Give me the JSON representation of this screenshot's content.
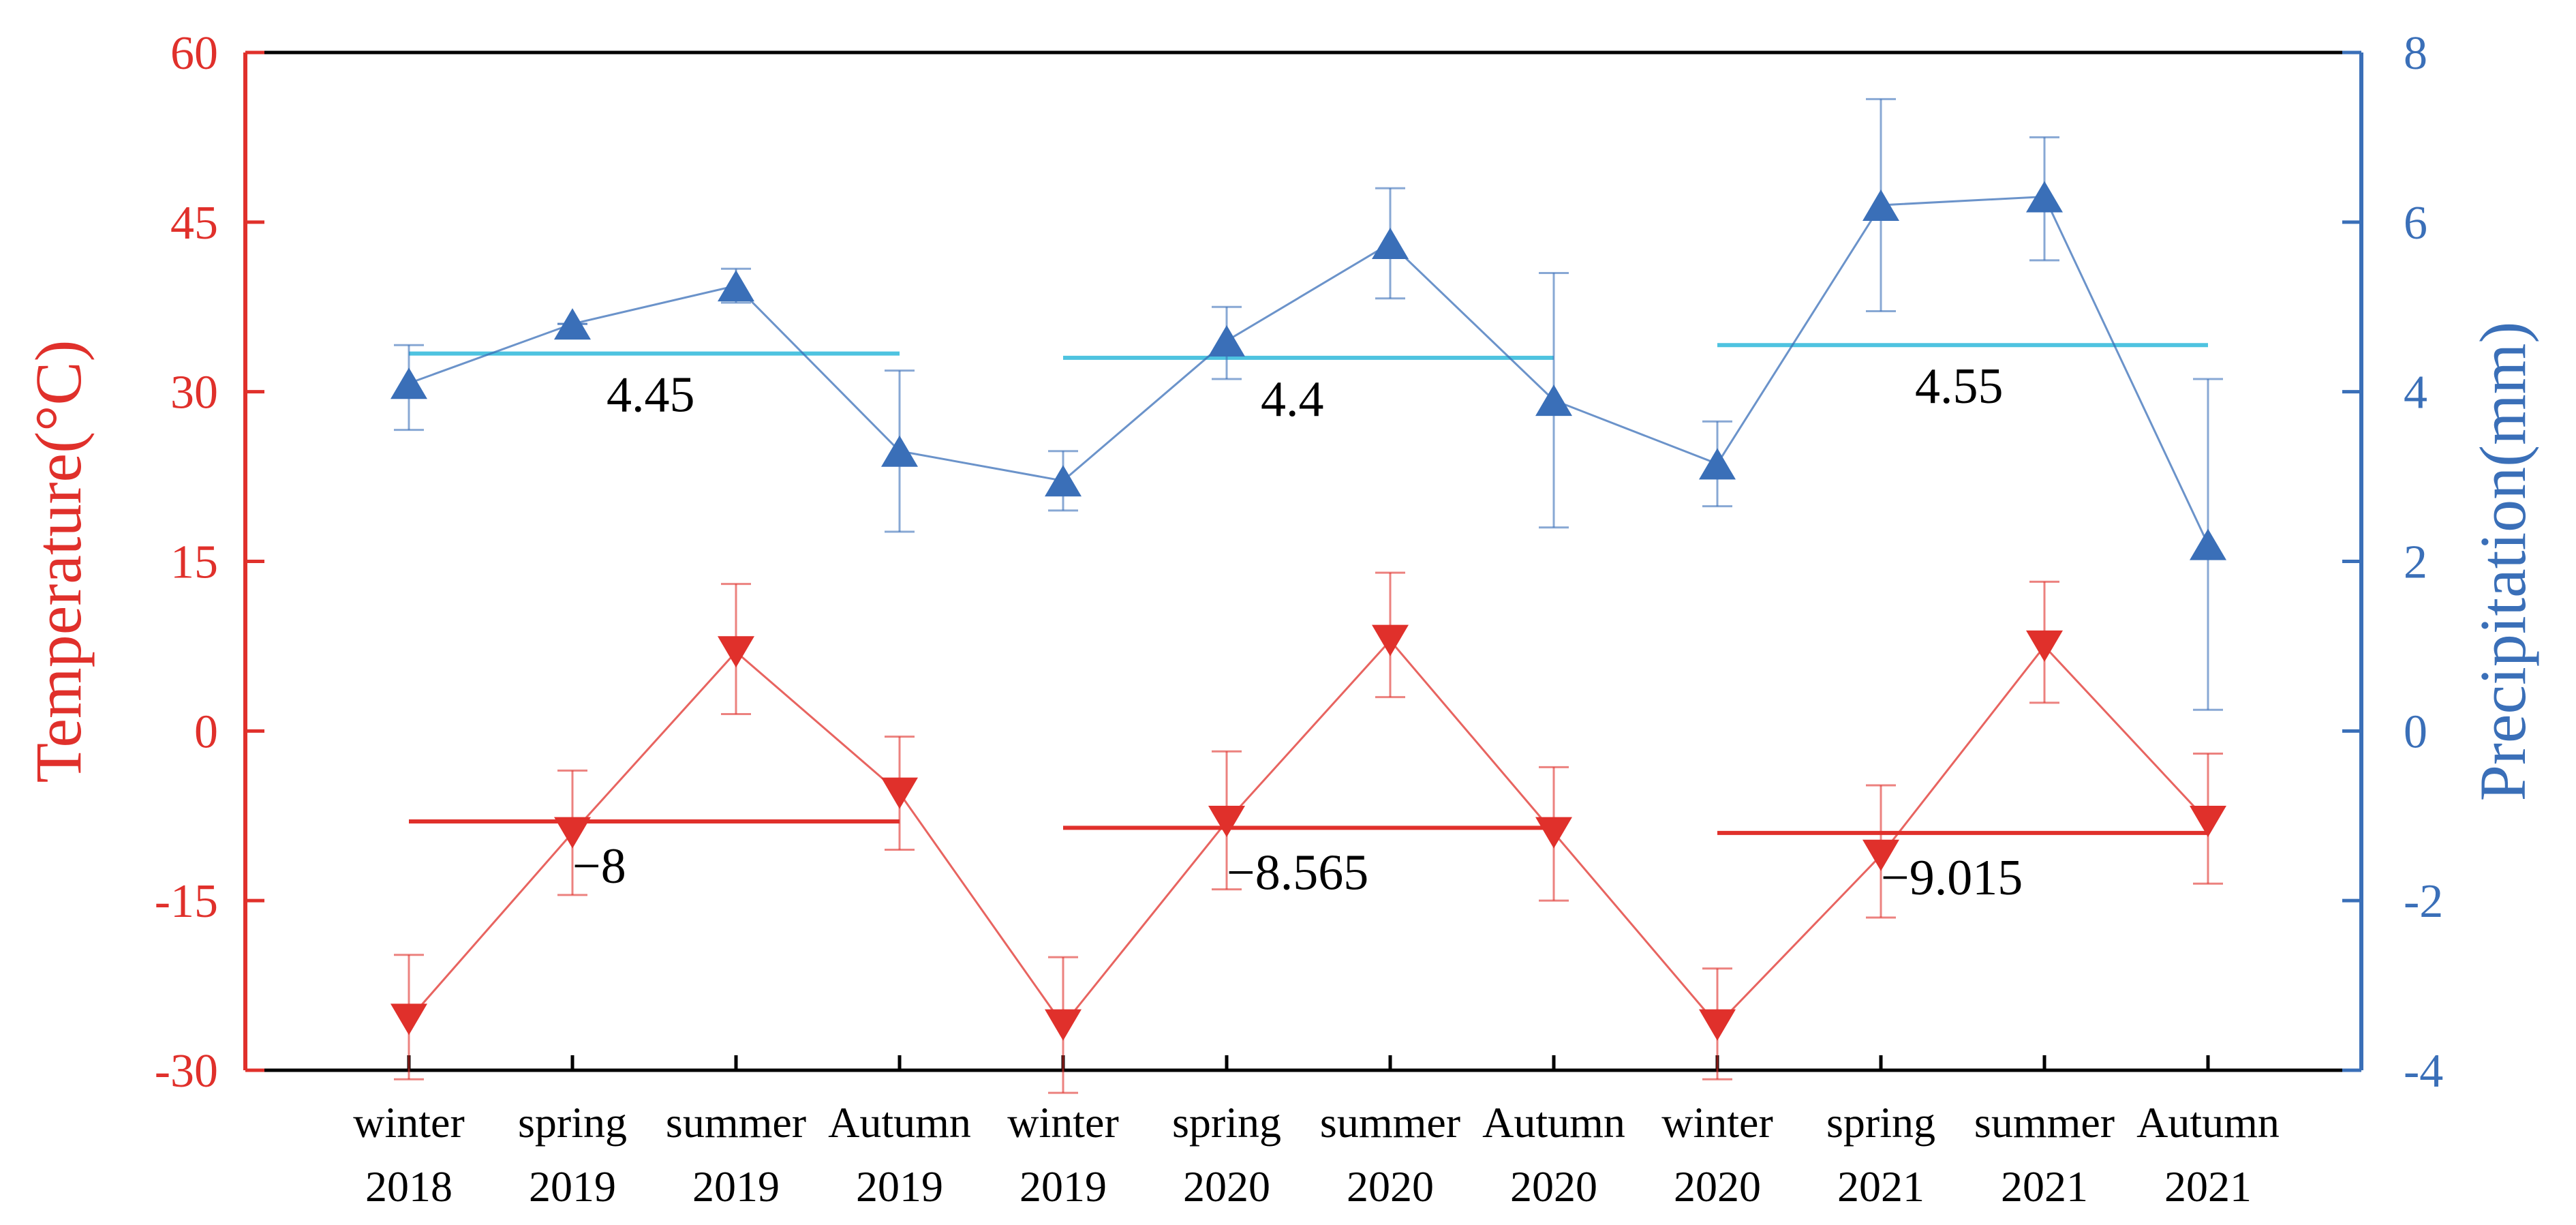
{
  "chart_data": {
    "type": "line",
    "categories": [
      [
        "winter",
        "2018"
      ],
      [
        "spring",
        "2019"
      ],
      [
        "summer",
        "2019"
      ],
      [
        "Autumn",
        "2019"
      ],
      [
        "winter",
        "2019"
      ],
      [
        "spring",
        "2020"
      ],
      [
        "summer",
        "2020"
      ],
      [
        "Autumn",
        "2020"
      ],
      [
        "winter",
        "2020"
      ],
      [
        "spring",
        "2021"
      ],
      [
        "summer",
        "2021"
      ],
      [
        "Autumn",
        "2021"
      ]
    ],
    "left_axis": {
      "label": "Temperature(°C)",
      "range": [
        -30,
        60
      ],
      "ticks": [
        "60",
        "45",
        "30",
        "15",
        "0",
        "-15",
        "-30"
      ],
      "tick_values": [
        60,
        45,
        30,
        15,
        0,
        -15,
        -30
      ],
      "color": "#e0302b"
    },
    "right_axis": {
      "label": "Precipitation(mm)",
      "range": [
        -4,
        8
      ],
      "ticks": [
        "8",
        "6",
        "4",
        "2",
        "0",
        "-2",
        "-4"
      ],
      "tick_values": [
        8,
        6,
        4,
        2,
        0,
        -2,
        -4
      ],
      "color": "#3a6fb8"
    },
    "series": [
      {
        "name": "Temperature",
        "axis": "left",
        "marker": "triangle-down",
        "color": "#e0302b",
        "values": [
          -25.5,
          -9,
          7,
          -5.5,
          -26,
          -8,
          8,
          -9,
          -26,
          -11,
          7.5,
          -8
        ],
        "err_low": [
          -30.8,
          -14.5,
          1.5,
          -10.5,
          -32,
          -14,
          3,
          -15,
          -30.8,
          -16.5,
          2.5,
          -13.5
        ],
        "err_high": [
          -19.8,
          -3.5,
          13,
          -0.5,
          -20,
          -1.8,
          14,
          -3.2,
          -21,
          -4.8,
          13.2,
          -2
        ]
      },
      {
        "name": "Precipitation",
        "axis": "right",
        "marker": "triangle-up",
        "color": "#3a6fb8",
        "values": [
          4.1,
          4.8,
          5.25,
          3.3,
          2.95,
          4.6,
          5.75,
          3.9,
          3.15,
          6.2,
          6.3,
          2.2
        ],
        "err_low": [
          3.55,
          4.8,
          5.05,
          2.35,
          2.6,
          4.15,
          5.1,
          2.4,
          2.65,
          4.95,
          5.55,
          0.25
        ],
        "err_high": [
          4.55,
          4.8,
          5.45,
          4.25,
          3.3,
          5.0,
          6.4,
          5.4,
          3.65,
          7.45,
          7.0,
          4.15
        ]
      }
    ],
    "mean_lines": [
      {
        "axis": "right",
        "value": 4.45,
        "label": "4.45",
        "from_index": 0,
        "to_index": 3,
        "color": "#4ec3e0"
      },
      {
        "axis": "right",
        "value": 4.4,
        "label": "4.4",
        "from_index": 4,
        "to_index": 7,
        "color": "#4ec3e0"
      },
      {
        "axis": "right",
        "value": 4.55,
        "label": "4.55",
        "from_index": 8,
        "to_index": 11,
        "color": "#4ec3e0"
      },
      {
        "axis": "left",
        "value": -8,
        "label": "−8",
        "from_index": 0,
        "to_index": 3,
        "color": "#e0302b"
      },
      {
        "axis": "left",
        "value": -8.565,
        "label": "−8.565",
        "from_index": 4,
        "to_index": 7,
        "color": "#e0302b"
      },
      {
        "axis": "left",
        "value": -9.015,
        "label": "−9.015",
        "from_index": 8,
        "to_index": 11,
        "color": "#e0302b"
      }
    ],
    "legend": "none",
    "grid": false
  }
}
